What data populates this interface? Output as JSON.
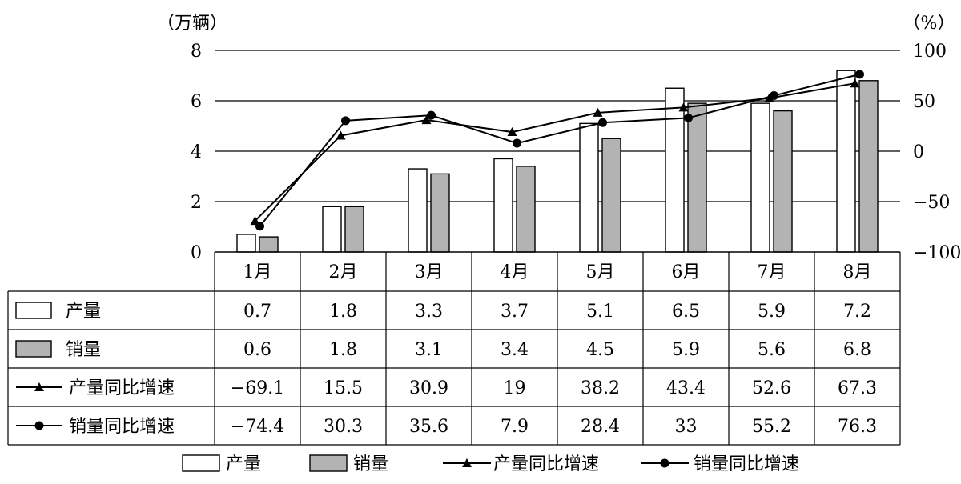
{
  "chart_data": {
    "type": "bar",
    "categories": [
      "1月",
      "2月",
      "3月",
      "4月",
      "5月",
      "6月",
      "7月",
      "8月"
    ],
    "left_axis": {
      "unit_label": "（万辆）",
      "range": [
        0,
        8
      ],
      "ticks": [
        "0",
        "2",
        "4",
        "6",
        "8"
      ]
    },
    "right_axis": {
      "unit_label": "（%）",
      "range": [
        -100,
        100
      ],
      "ticks": [
        "−100",
        "−50",
        "0",
        "50",
        "100"
      ]
    },
    "grid": "horizontal",
    "series": [
      {
        "name": "产量",
        "type": "bar",
        "axis": "left",
        "color": "#ffffff",
        "values": [
          0.7,
          1.8,
          3.3,
          3.7,
          5.1,
          6.5,
          5.9,
          7.2
        ]
      },
      {
        "name": "销量",
        "type": "bar",
        "axis": "left",
        "color": "#b3b3b3",
        "values": [
          0.6,
          1.8,
          3.1,
          3.4,
          4.5,
          5.9,
          5.6,
          6.8
        ]
      },
      {
        "name": "产量同比增速",
        "type": "line",
        "marker": "triangle",
        "axis": "right",
        "color": "#000000",
        "values": [
          -69.1,
          15.5,
          30.9,
          19,
          38.2,
          43.4,
          52.6,
          67.3
        ]
      },
      {
        "name": "销量同比增速",
        "type": "line",
        "marker": "circle",
        "axis": "right",
        "color": "#000000",
        "values": [
          -74.4,
          30.3,
          35.6,
          7.9,
          28.4,
          33,
          55.2,
          76.3
        ]
      }
    ],
    "table": [
      [
        "0.7",
        "1.8",
        "3.3",
        "3.7",
        "5.1",
        "6.5",
        "5.9",
        "7.2"
      ],
      [
        "0.6",
        "1.8",
        "3.1",
        "3.4",
        "4.5",
        "5.9",
        "5.6",
        "6.8"
      ],
      [
        "−69.1",
        "15.5",
        "30.9",
        "19",
        "38.2",
        "43.4",
        "52.6",
        "67.3"
      ],
      [
        "−74.4",
        "30.3",
        "35.6",
        "7.9",
        "28.4",
        "33",
        "55.2",
        "76.3"
      ]
    ],
    "legend_position": "bottom"
  }
}
